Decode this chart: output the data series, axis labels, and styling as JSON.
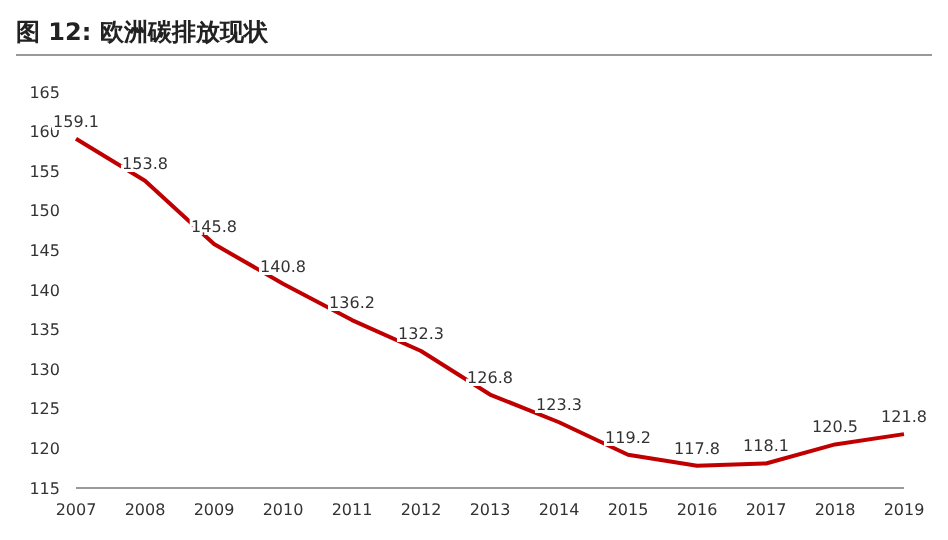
{
  "chart_data": {
    "type": "line",
    "title": "图 12:  欧洲碳排放现状",
    "categories": [
      "2007",
      "2008",
      "2009",
      "2010",
      "2011",
      "2012",
      "2013",
      "2014",
      "2015",
      "2016",
      "2017",
      "2018",
      "2019"
    ],
    "series": [
      {
        "color": "#c00000",
        "values": [
          159.1,
          153.8,
          145.8,
          140.8,
          136.2,
          132.3,
          126.8,
          123.3,
          119.2,
          117.8,
          118.1,
          120.5,
          121.8
        ]
      }
    ],
    "ylim": [
      115,
      165
    ],
    "yticks": [
      115,
      120,
      125,
      130,
      135,
      140,
      145,
      150,
      155,
      160,
      165
    ],
    "data_labels": true,
    "marker": "none",
    "line_style": "solid",
    "grid": false,
    "legend": false
  }
}
